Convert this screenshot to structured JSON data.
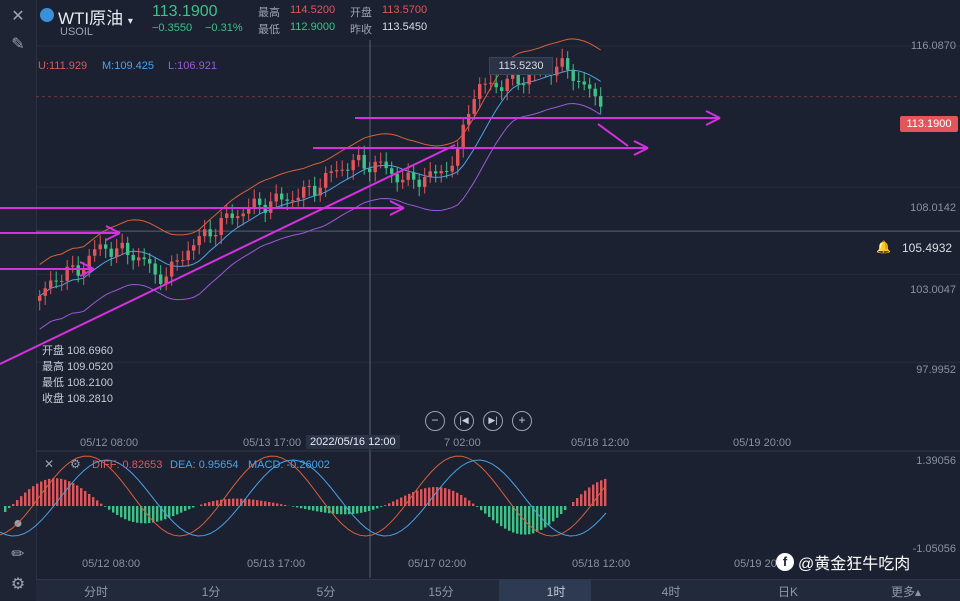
{
  "header": {
    "symbol_name": "WTI原油",
    "symbol_code": "USOIL",
    "price": "113.1900",
    "change": "−0.3550",
    "change_pct": "−0.31%",
    "high_label": "最高",
    "high": "114.5200",
    "open_label": "开盘",
    "open": "113.5700",
    "low_label": "最低",
    "low": "112.9000",
    "prev_label": "昨收",
    "prev": "113.5450"
  },
  "bollinger": {
    "upper": "U:111.929",
    "mid": "M:109.425",
    "lower": "L:106.921"
  },
  "y_axis": [
    "116.0870",
    "108.0142",
    "103.0047",
    "97.9952"
  ],
  "price_tag": "113.1900",
  "alert_price": "105.4932",
  "peak_label": "115.5230",
  "ohlc_tooltip": [
    {
      "label": "开盘",
      "value": "108.6960"
    },
    {
      "label": "最高",
      "value": "109.0520"
    },
    {
      "label": "最低",
      "value": "108.2100"
    },
    {
      "label": "收盘",
      "value": "108.2810"
    }
  ],
  "x_axis_main": [
    "05/12 08:00",
    "05/13 17:00",
    "7 02:00",
    "05/18 12:00",
    "05/19 20:00"
  ],
  "crosshair_time": "2022/05/16 12:00",
  "macd": {
    "diff": "DIFF: 0.82653",
    "dea": "DEA: 0.95654",
    "macd": "MACD: -0.26002"
  },
  "macd_y": [
    "1.39056",
    "-1.05056"
  ],
  "x_axis_macd": [
    "05/12 08:00",
    "05/13 17:00",
    "05/17 02:00",
    "05/18 12:00",
    "05/19 20:00"
  ],
  "tabs": [
    "分时",
    "1分",
    "5分",
    "15分",
    "1时",
    "4时",
    "日K",
    "更多▴"
  ],
  "watermark": "@黄金狂牛吃肉",
  "colors": {
    "up": "#e2565b",
    "down": "#3fc187",
    "boll_upper": "#d9603a",
    "boll_mid": "#4aa3e8",
    "boll_lower": "#9b59d6",
    "trend": "#d630e0"
  }
}
